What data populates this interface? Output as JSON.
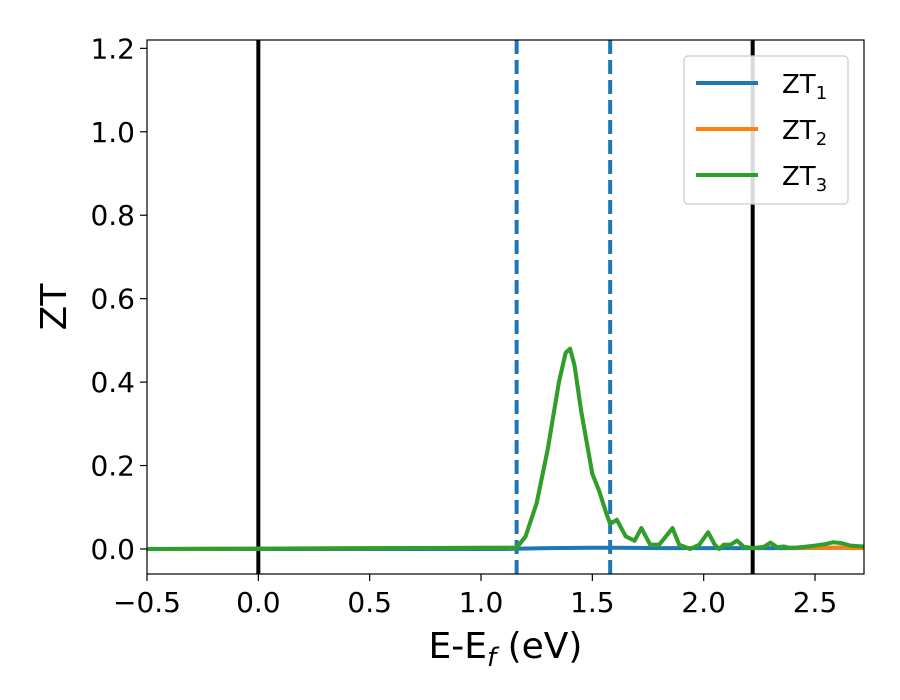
{
  "chart_data": {
    "type": "line",
    "xlabel": "E-E",
    "xlabel_sub": "f",
    "xlabel_unit": " (eV)",
    "ylabel": "ZT",
    "xlim": [
      -0.5,
      2.72
    ],
    "ylim": [
      -0.06,
      1.22
    ],
    "xticks": [
      -0.5,
      0.0,
      0.5,
      1.0,
      1.5,
      2.0,
      2.5
    ],
    "xtick_labels": [
      "−0.5",
      "0.0",
      "0.5",
      "1.0",
      "1.5",
      "2.0",
      "2.5"
    ],
    "yticks": [
      0.0,
      0.2,
      0.4,
      0.6,
      0.8,
      1.0,
      1.2
    ],
    "ytick_labels": [
      "0.0",
      "0.2",
      "0.4",
      "0.6",
      "0.8",
      "1.0",
      "1.2"
    ],
    "legend_position": "top-right",
    "vlines_solid": [
      0.0,
      2.22
    ],
    "vlines_dashed": [
      1.16,
      1.58
    ],
    "vline_solid_color": "#000000",
    "vline_dashed_color": "#1f77b4",
    "series": [
      {
        "name": "ZT",
        "sub": "1",
        "color": "#1f77b4",
        "x": [
          -0.5,
          1.1,
          1.3,
          1.5,
          1.6,
          1.8,
          2.0,
          2.2,
          2.4,
          2.6,
          2.72
        ],
        "y": [
          0.0,
          0.0,
          0.002,
          0.003,
          0.003,
          0.002,
          0.002,
          0.002,
          0.002,
          0.003,
          0.003
        ]
      },
      {
        "name": "ZT",
        "sub": "2",
        "color": "#ff7f0e",
        "x": [
          -0.5,
          1.16,
          1.2,
          1.25,
          1.3,
          1.35,
          1.38,
          1.4,
          1.42,
          1.45,
          1.48,
          1.5,
          1.53,
          1.56,
          1.58,
          1.61,
          1.65,
          1.69,
          1.72,
          1.76,
          1.8,
          1.83,
          1.86,
          1.89,
          1.94,
          1.98,
          2.02,
          2.05,
          2.07,
          2.09,
          2.12,
          2.15,
          2.18,
          2.22,
          2.27,
          2.3,
          2.33,
          2.36,
          2.38,
          2.41,
          2.45,
          2.5,
          2.55,
          2.58,
          2.62,
          2.66,
          2.72
        ],
        "y": [
          0.0,
          0.003,
          0.03,
          0.11,
          0.24,
          0.4,
          0.47,
          0.48,
          0.44,
          0.33,
          0.24,
          0.18,
          0.14,
          0.09,
          0.06,
          0.07,
          0.03,
          0.02,
          0.05,
          0.01,
          0.01,
          0.03,
          0.05,
          0.01,
          0.0,
          0.01,
          0.04,
          0.01,
          0.0,
          0.01,
          0.01,
          0.02,
          0.005,
          0.002,
          0.005,
          0.015,
          0.004,
          0.006,
          0.003,
          0.003,
          0.003,
          0.003,
          0.003,
          0.003,
          0.004,
          0.002,
          0.002
        ]
      },
      {
        "name": "ZT",
        "sub": "3",
        "color": "#2ca02c",
        "x": [
          -0.5,
          1.16,
          1.2,
          1.25,
          1.3,
          1.35,
          1.38,
          1.4,
          1.42,
          1.45,
          1.48,
          1.5,
          1.53,
          1.56,
          1.58,
          1.61,
          1.65,
          1.69,
          1.72,
          1.76,
          1.8,
          1.83,
          1.86,
          1.89,
          1.94,
          1.98,
          2.02,
          2.05,
          2.07,
          2.09,
          2.12,
          2.15,
          2.18,
          2.22,
          2.27,
          2.3,
          2.33,
          2.36,
          2.38,
          2.41,
          2.45,
          2.5,
          2.55,
          2.58,
          2.62,
          2.66,
          2.72
        ],
        "y": [
          0.0,
          0.003,
          0.03,
          0.11,
          0.24,
          0.4,
          0.47,
          0.48,
          0.44,
          0.33,
          0.24,
          0.18,
          0.14,
          0.09,
          0.06,
          0.07,
          0.03,
          0.02,
          0.05,
          0.01,
          0.01,
          0.03,
          0.05,
          0.01,
          0.0,
          0.01,
          0.04,
          0.01,
          0.0,
          0.01,
          0.01,
          0.02,
          0.005,
          0.002,
          0.005,
          0.015,
          0.004,
          0.006,
          0.003,
          0.003,
          0.005,
          0.008,
          0.012,
          0.016,
          0.014,
          0.008,
          0.006
        ]
      }
    ]
  }
}
